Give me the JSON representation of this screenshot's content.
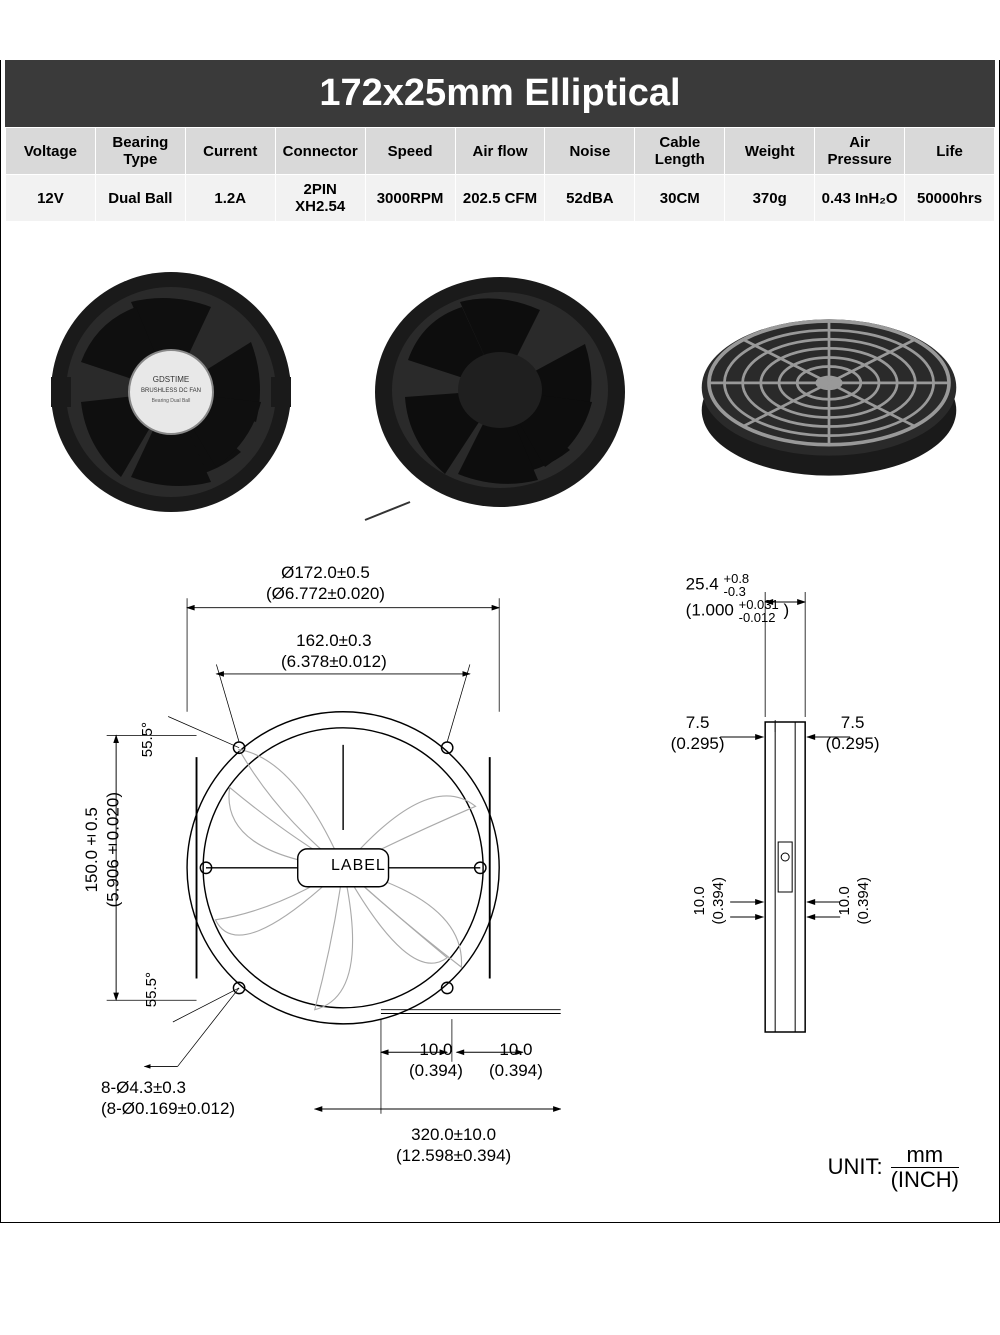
{
  "title": "172x25mm Elliptical",
  "spec_table": {
    "headers": [
      "Voltage",
      "Bearing Type",
      "Current",
      "Connector",
      "Speed",
      "Air flow",
      "Noise",
      "Cable Length",
      "Weight",
      "Air Pressure",
      "Life"
    ],
    "row": [
      "12V",
      "Dual Ball",
      "1.2A",
      "2PIN XH2.54",
      "3000RPM",
      "202.5 CFM",
      "52dBA",
      "30CM",
      "370g",
      "0.43 InH₂O",
      "50000hrs"
    ]
  },
  "colors": {
    "title_bg": "#3a3a3a",
    "title_fg": "#ffffff",
    "header_bg": "#d9d9d9",
    "cell_bg": "#f2f2f2",
    "border": "#ffffff"
  },
  "dimensions": {
    "outer_dia_mm": "Ø172.0±0.5",
    "outer_dia_in": "(Ø6.772±0.020)",
    "hole_span_mm": "162.0±0.3",
    "hole_span_in": "(6.378±0.012)",
    "height_mm": "150.0±0.5",
    "height_in": "(5.906±0.020)",
    "angle1": "55.5°",
    "angle2": "55.5°",
    "hole_spec_mm": "8-Ø4.3±0.3",
    "hole_spec_in": "(8-Ø0.169±0.012)",
    "wire_seg_mm": "10.0",
    "wire_seg_in": "(0.394)",
    "wire_total_mm": "320.0±10.0",
    "wire_total_in": "(12.598±0.394)",
    "thick_mm": "25.4",
    "thick_tol_mm_p": "+0.8",
    "thick_tol_mm_n": "-0.3",
    "thick_in": "(1.000",
    "thick_tol_in_p": "+0.031",
    "thick_tol_in_n": "-0.012",
    "side_offset_mm": "7.5",
    "side_offset_in": "(0.295)",
    "side_small_mm": "10.0",
    "side_small_in": "(0.394)",
    "label_text": "LABEL"
  },
  "unit": {
    "prefix": "UNIT:",
    "top": "mm",
    "bottom": "(INCH)"
  }
}
